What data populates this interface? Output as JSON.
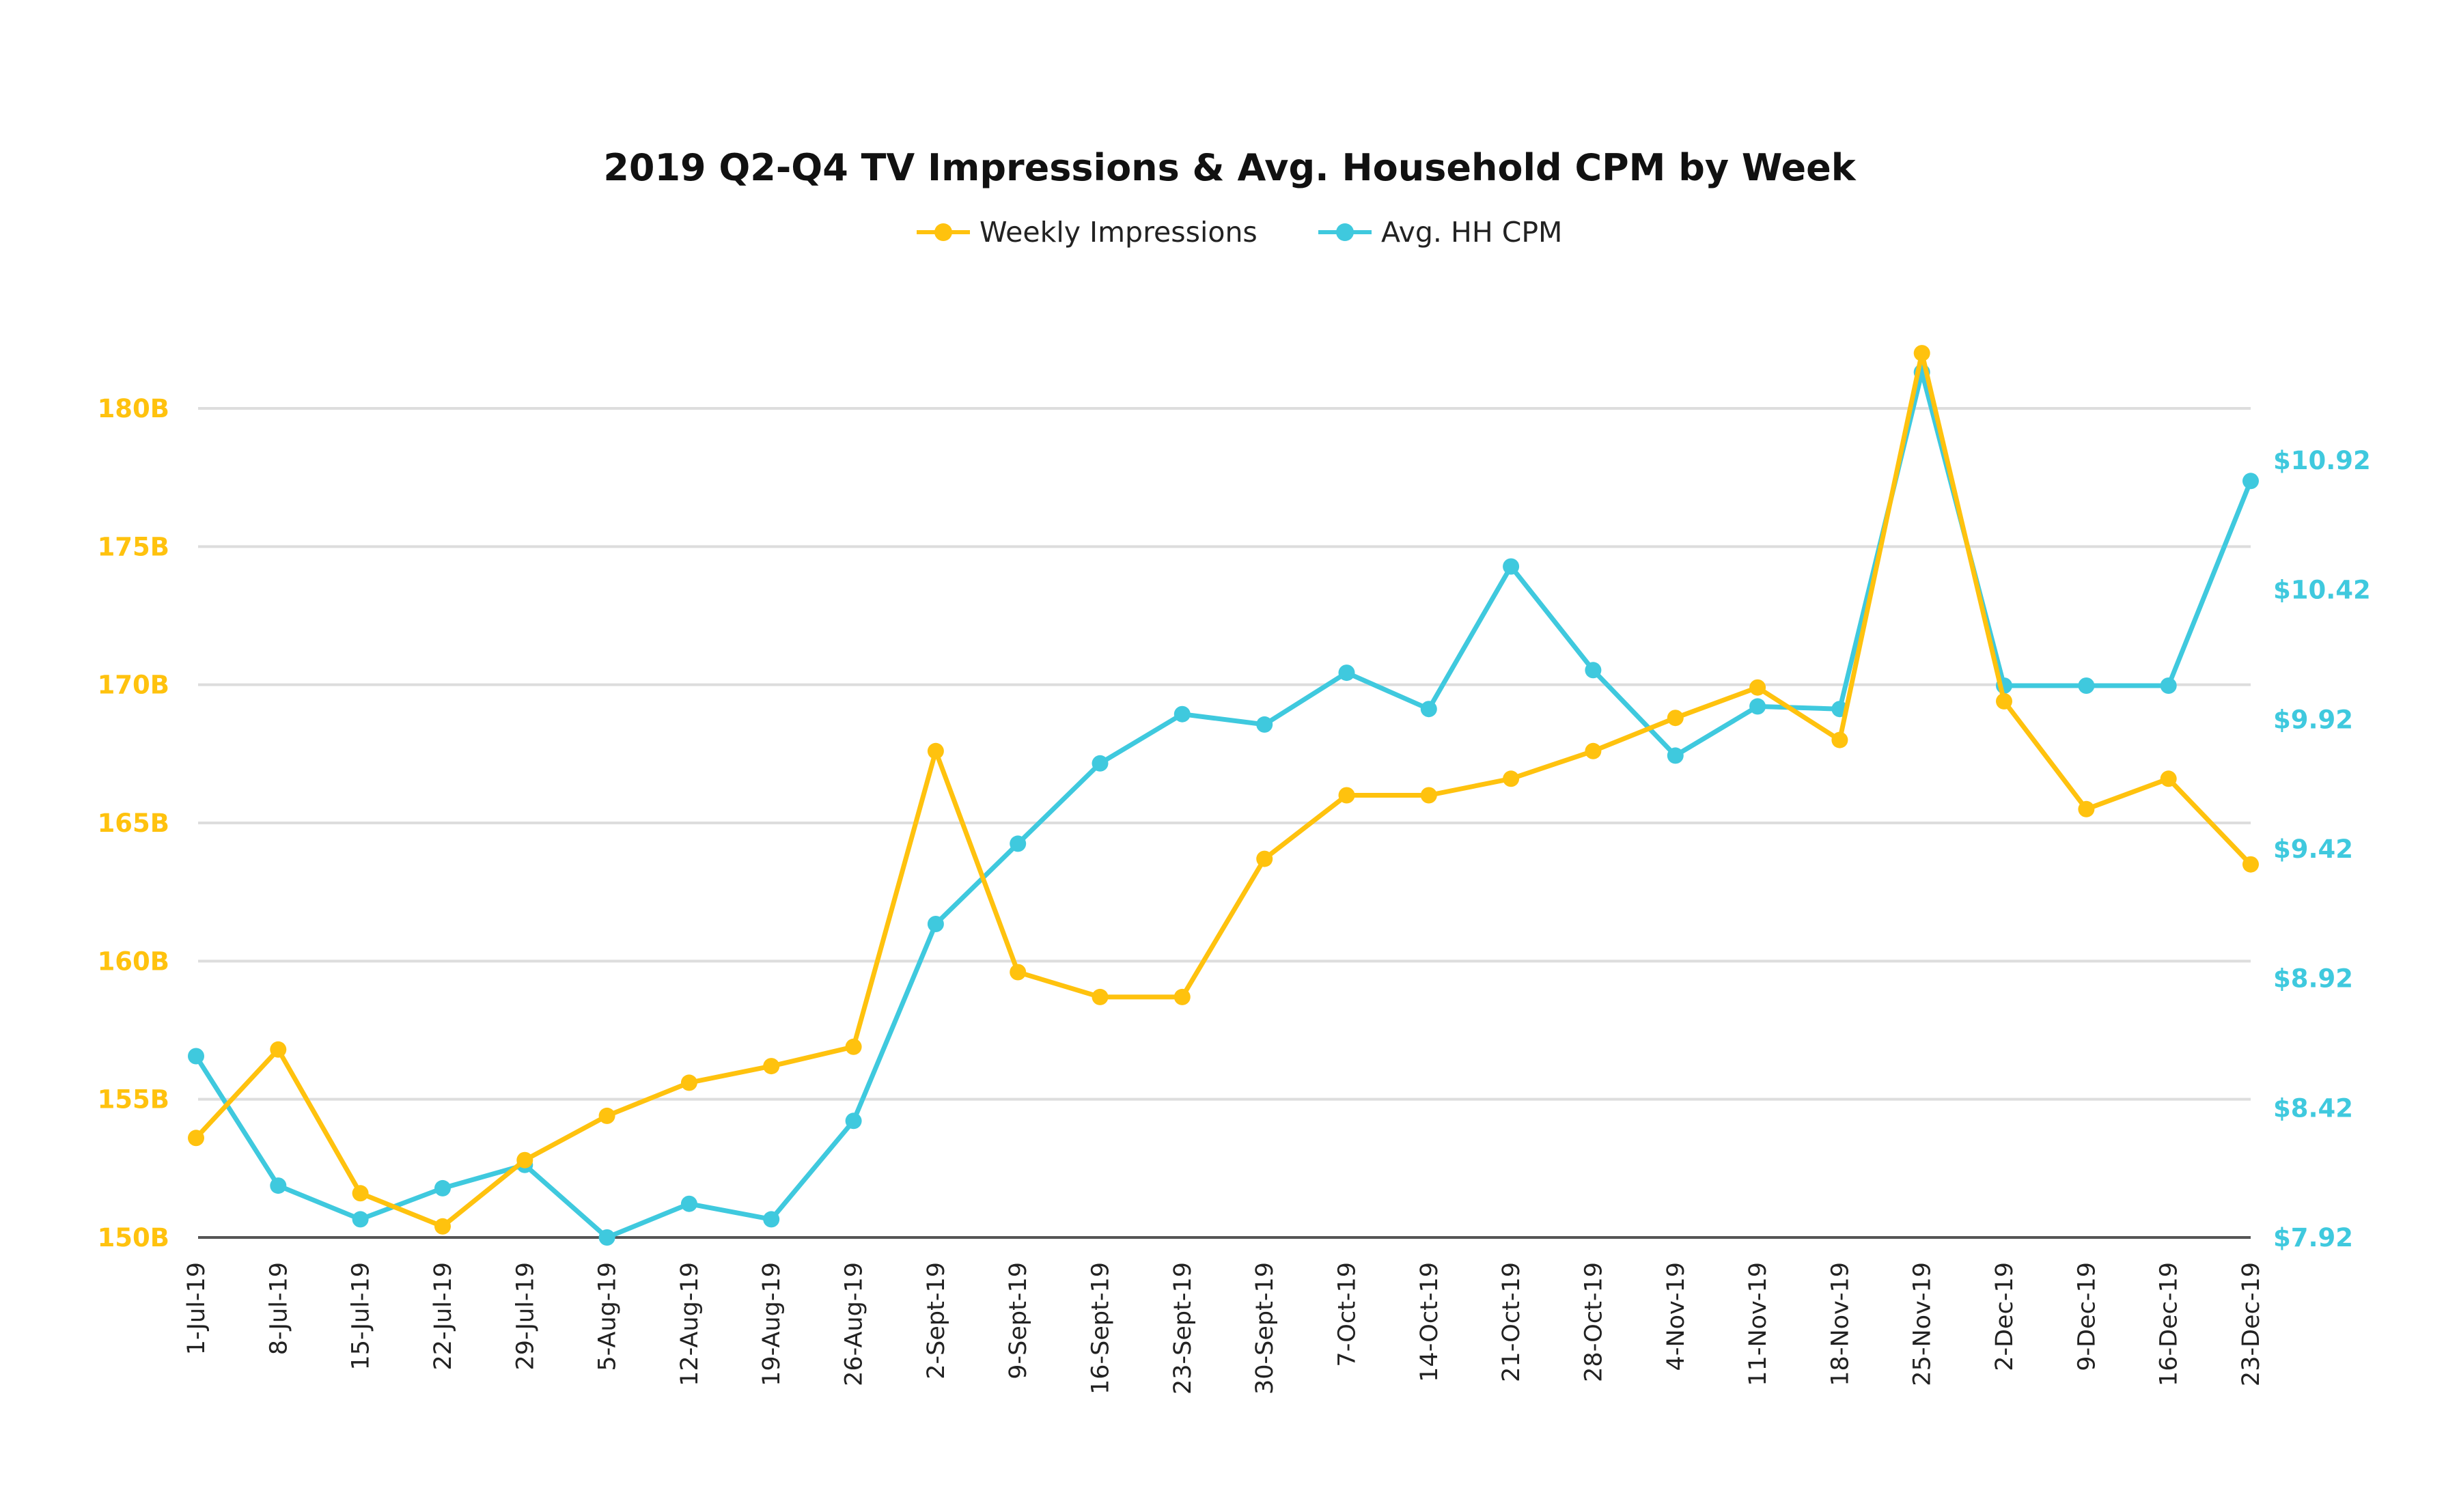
{
  "colors": {
    "impressions": "#FFC20E",
    "cpm": "#3FC9DE",
    "grid": "#DDDDDD",
    "axis": "#555555",
    "background": "#FFFFFF"
  },
  "chart_data": {
    "type": "line",
    "title": "2019 Q2-Q4 TV Impressions & Avg. Household CPM by Week",
    "legend_position": "top-center",
    "grid": true,
    "categories": [
      "1-Jul-19",
      "8-Jul-19",
      "15-Jul-19",
      "22-Jul-19",
      "29-Jul-19",
      "5-Aug-19",
      "12-Aug-19",
      "19-Aug-19",
      "26-Aug-19",
      "2-Sept-19",
      "9-Sept-19",
      "16-Sept-19",
      "23-Sept-19",
      "30-Sept-19",
      "7-Oct-19",
      "14-Oct-19",
      "21-Oct-19",
      "28-Oct-19",
      "4-Nov-19",
      "11-Nov-19",
      "18-Nov-19",
      "25-Nov-19",
      "2-Dec-19",
      "9-Dec-19",
      "16-Dec-19",
      "23-Dec-19"
    ],
    "y_left": {
      "ticks": [
        150,
        155,
        160,
        165,
        170,
        175,
        180
      ],
      "tick_labels": [
        "150B",
        "155B",
        "160B",
        "165B",
        "170B",
        "175B",
        "180B"
      ],
      "range": [
        150,
        180
      ],
      "unit": "B"
    },
    "y_right": {
      "ticks": [
        7.92,
        8.42,
        8.92,
        9.42,
        9.92,
        10.42,
        10.92
      ],
      "tick_labels": [
        "$7.92",
        "$8.42",
        "$8.92",
        "$9.42",
        "$9.92",
        "$10.42",
        "$10.92"
      ],
      "range": [
        7.92,
        10.92
      ]
    },
    "series": [
      {
        "name": "Weekly Impressions",
        "axis": "left",
        "values": [
          153.6,
          156.8,
          151.6,
          150.4,
          152.8,
          154.4,
          155.6,
          156.2,
          156.9,
          167.6,
          159.6,
          158.7,
          158.7,
          163.7,
          166.0,
          166.0,
          166.6,
          167.6,
          168.8,
          169.9,
          168.0,
          182.0,
          169.4,
          165.5,
          166.6,
          163.5
        ]
      },
      {
        "name": "Avg. HH CPM",
        "axis": "right",
        "values": [
          8.62,
          8.12,
          7.99,
          8.11,
          8.2,
          7.92,
          8.05,
          7.99,
          8.37,
          9.13,
          9.44,
          9.75,
          9.94,
          9.9,
          10.1,
          9.96,
          10.51,
          10.11,
          9.78,
          9.97,
          9.96,
          11.26,
          10.05,
          10.05,
          10.05,
          10.84
        ]
      }
    ]
  }
}
